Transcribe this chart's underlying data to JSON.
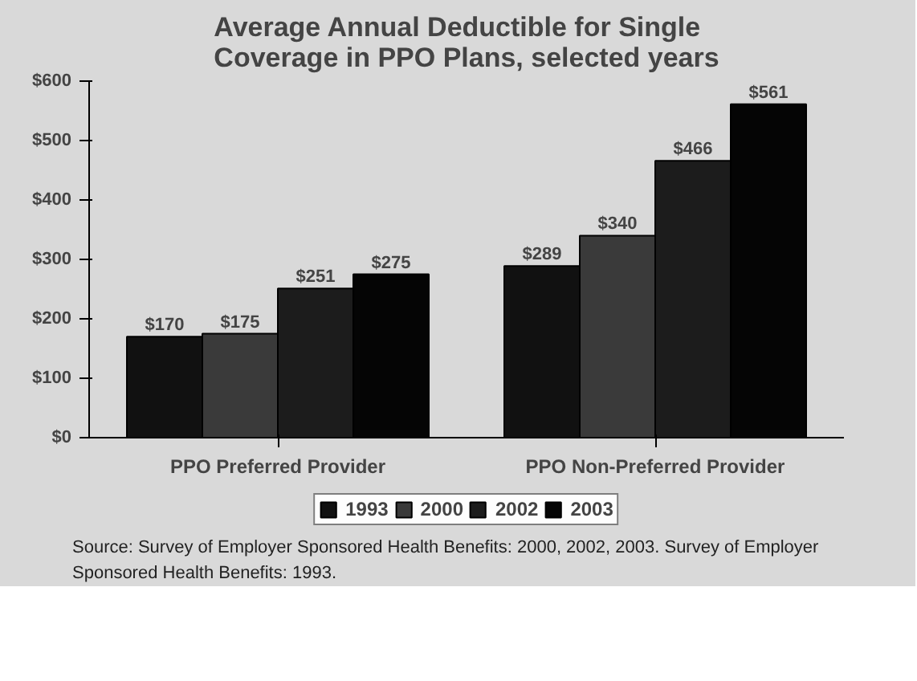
{
  "chart_data": {
    "type": "bar",
    "title": "Average Annual Deductible for Single Coverage in PPO Plans, selected years",
    "categories": [
      "PPO Preferred Provider",
      "PPO Non-Preferred Provider"
    ],
    "series": [
      {
        "name": "1993",
        "color": "#111111",
        "values": [
          170,
          289
        ],
        "value_labels": [
          "$170",
          "$289"
        ]
      },
      {
        "name": "2000",
        "color": "#3a3a3a",
        "values": [
          175,
          340
        ],
        "value_labels": [
          "$175",
          "$340"
        ]
      },
      {
        "name": "2002",
        "color": "#1c1c1c",
        "values": [
          251,
          466
        ],
        "value_labels": [
          "$251",
          "$466"
        ]
      },
      {
        "name": "2003",
        "color": "#050505",
        "values": [
          275,
          561
        ],
        "value_labels": [
          "$275",
          "$561"
        ]
      }
    ],
    "ylim": [
      0,
      600
    ],
    "yticks": [
      {
        "value": 0,
        "label": "$0"
      },
      {
        "value": 100,
        "label": "$100"
      },
      {
        "value": 200,
        "label": "$200"
      },
      {
        "value": 300,
        "label": "$300"
      },
      {
        "value": 400,
        "label": "$400"
      },
      {
        "value": 500,
        "label": "$500"
      },
      {
        "value": 600,
        "label": "$600"
      }
    ],
    "grid": false,
    "legend": "bottom",
    "annotations": [
      "Source: Survey of Employer Sponsored Health Benefits: 2000, 2002, 2003. Survey of Employer Sponsored Health Benefits: 1993."
    ]
  }
}
